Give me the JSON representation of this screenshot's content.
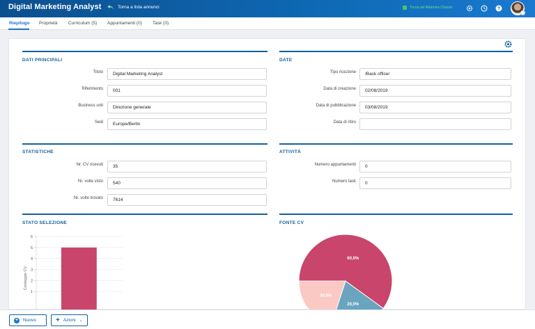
{
  "header": {
    "title": "Digital Marketing Analyst",
    "back_label": "Torna a lista annunci",
    "classic_label": "Torna ad Altamira Classic"
  },
  "tabs": [
    {
      "label": "Riepilogo"
    },
    {
      "label": "Proprietà"
    },
    {
      "label": "Curriculum (5)"
    },
    {
      "label": "Appuntamenti (0)"
    },
    {
      "label": "Task (0)"
    }
  ],
  "dati_principali": {
    "title": "DATI PRINCIPALI",
    "fields": [
      {
        "label": "Titolo",
        "value": "Digital Marketing Analyst"
      },
      {
        "label": "Riferimento",
        "value": "001"
      },
      {
        "label": "Business unit",
        "value": "Direzione generale"
      },
      {
        "label": "Sedi",
        "value": "Europe/Berlin"
      }
    ]
  },
  "date": {
    "title": "DATE",
    "fields": [
      {
        "label": "Tipo ricezione",
        "value": "/Back office/"
      },
      {
        "label": "Data di creazione",
        "value": "02/08/2019"
      },
      {
        "label": "Data di pubblicazione",
        "value": "03/08/2019"
      },
      {
        "label": "Data di ritiro",
        "value": ""
      }
    ]
  },
  "statistiche": {
    "title": "STATISTICHE",
    "fields": [
      {
        "label": "Nr. CV ricevuti",
        "value": "35"
      },
      {
        "label": "Nr. volte visto",
        "value": "540"
      },
      {
        "label": "Nr. volte trovato",
        "value": "7614"
      }
    ]
  },
  "attivita": {
    "title": "ATTIVITÀ",
    "fields": [
      {
        "label": "Numero appuntamenti",
        "value": "0"
      },
      {
        "label": "Numero task",
        "value": "0"
      }
    ]
  },
  "stato_selezione": {
    "title": "STATO SELEZIONE"
  },
  "fonte_cv": {
    "title": "FONTE CV"
  },
  "chart_data": [
    {
      "type": "bar",
      "title": "STATO SELEZIONE",
      "ylabel": "Conteggio CV",
      "ylim": [
        0,
        6
      ],
      "yticks": [
        1,
        2,
        3,
        4,
        5,
        6
      ],
      "categories": [
        ""
      ],
      "values": [
        5
      ],
      "color": "#c9456b"
    },
    {
      "type": "pie",
      "title": "FONTE CV",
      "slices": [
        {
          "label": "60,0%",
          "value": 60.0,
          "color": "#c9456b"
        },
        {
          "label": "20,0%",
          "value": 20.0,
          "color": "#6aa4bf"
        },
        {
          "label": "20,0%",
          "value": 20.0,
          "color": "#fbc9c3"
        }
      ]
    }
  ],
  "bottom": {
    "new_label": "Nuovo",
    "actions_label": "Azioni"
  },
  "colors": {
    "brand": "#0f69b4",
    "accent": "#10609f",
    "highlight": "#c9456b"
  }
}
